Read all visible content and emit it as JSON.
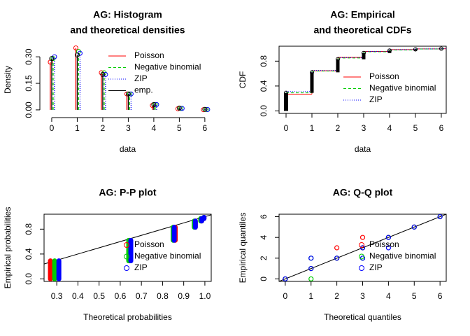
{
  "chart_data": [
    {
      "type": "density",
      "title": [
        "AG: Histogram",
        "and theoretical densities"
      ],
      "xlabel": "data",
      "ylabel": "Density",
      "x": [
        0,
        1,
        2,
        3,
        4,
        5,
        6
      ],
      "xlim": [
        -0.3,
        6.25
      ],
      "ylim": [
        -0.02,
        0.36
      ],
      "xticks": [
        0,
        1,
        2,
        3,
        4,
        5,
        6
      ],
      "yticks": [
        {
          "value": 0,
          "label": "0.00"
        },
        0.15,
        {
          "value": 0.3,
          "label": "0.30"
        }
      ],
      "box": false,
      "legend_position": "topright",
      "legend_symbol": "line",
      "series": [
        {
          "name": "Poisson",
          "color": "#ff0000",
          "line_style": "solid",
          "values": [
            0.27,
            0.35,
            0.21,
            0.09,
            0.025,
            0.006,
            0.001
          ]
        },
        {
          "name": "Negative binomial",
          "color": "#00cd00",
          "line_style": "dashed",
          "values": [
            0.29,
            0.33,
            0.21,
            0.09,
            0.03,
            0.008,
            0.002
          ]
        },
        {
          "name": "ZIP",
          "color": "#0000ff",
          "line_style": "dotted",
          "values": [
            0.3,
            0.32,
            0.2,
            0.09,
            0.03,
            0.008,
            0.002
          ]
        },
        {
          "name": "emp.",
          "color": "#000000",
          "line_style": "solid",
          "values": [
            0.29,
            0.31,
            0.2,
            0.09,
            0.03,
            0.01,
            0.003
          ]
        }
      ]
    },
    {
      "type": "cdf",
      "title": [
        "AG: Empirical",
        "and theoretical CDFs"
      ],
      "xlabel": "data",
      "ylabel": "CDF",
      "x": [
        0,
        1,
        2,
        3,
        4,
        5,
        6
      ],
      "xlim": [
        -0.27,
        6.19
      ],
      "ylim": [
        -0.04,
        1.04
      ],
      "xticks": [
        0,
        1,
        2,
        3,
        4,
        5,
        6
      ],
      "yticks": [
        {
          "value": 0,
          "label": "0.0"
        },
        0.4,
        0.8
      ],
      "box": true,
      "legend_position": "right",
      "legend_symbol": "line",
      "empirical": [
        0.29,
        0.62,
        0.83,
        0.93,
        0.97,
        0.99,
        1.0
      ],
      "series": [
        {
          "name": "Poisson",
          "color": "#ff0000",
          "line_style": "solid",
          "values": [
            0.27,
            0.645,
            0.86,
            0.955,
            0.985,
            0.996,
            0.999
          ]
        },
        {
          "name": "Negative binomial",
          "color": "#00cd00",
          "line_style": "dashed",
          "values": [
            0.29,
            0.64,
            0.85,
            0.95,
            0.98,
            0.995,
            0.999
          ]
        },
        {
          "name": "ZIP",
          "color": "#0000ff",
          "line_style": "dotted",
          "values": [
            0.31,
            0.65,
            0.855,
            0.955,
            0.985,
            0.996,
            0.999
          ]
        }
      ]
    },
    {
      "type": "pp",
      "title": [
        "AG: P-P plot"
      ],
      "xlabel": "Theoretical probabilities",
      "ylabel": "Empirical probabilities",
      "xlim": [
        0.24,
        1.03
      ],
      "ylim": [
        -0.04,
        1.04
      ],
      "xticks": [
        0.3,
        0.4,
        0.5,
        0.6,
        0.7,
        0.8,
        0.9,
        {
          "value": 1,
          "label": "1.0"
        }
      ],
      "yticks": [
        {
          "value": 0,
          "label": "0.0"
        },
        0.4,
        0.8
      ],
      "box": true,
      "legend_position": "bottomright",
      "legend_symbol": "point",
      "series": [
        {
          "name": "Poisson",
          "color": "#ff0000",
          "x": [
            0.27,
            0.645,
            0.86,
            0.955,
            0.985,
            0.996
          ],
          "low": [
            0,
            0.29,
            0.62,
            0.83,
            0.93,
            0.97
          ],
          "high": [
            0.29,
            0.62,
            0.83,
            0.93,
            0.97,
            0.99
          ]
        },
        {
          "name": "Negative binomial",
          "color": "#00cd00",
          "x": [
            0.29,
            0.64,
            0.85,
            0.95,
            0.98,
            0.995
          ],
          "low": [
            0,
            0.29,
            0.62,
            0.83,
            0.93,
            0.97
          ],
          "high": [
            0.29,
            0.62,
            0.83,
            0.93,
            0.97,
            0.99
          ]
        },
        {
          "name": "ZIP",
          "color": "#0000ff",
          "x": [
            0.31,
            0.65,
            0.855,
            0.955,
            0.985,
            0.996
          ],
          "low": [
            0,
            0.29,
            0.62,
            0.83,
            0.93,
            0.97
          ],
          "high": [
            0.29,
            0.62,
            0.83,
            0.93,
            0.97,
            0.99
          ]
        }
      ]
    },
    {
      "type": "qq",
      "title": [
        "AG: Q-Q plot"
      ],
      "xlabel": "Theoretical quantiles",
      "ylabel": "Empirical quantiles",
      "xlim": [
        -0.24,
        6.24
      ],
      "ylim": [
        -0.24,
        6.24
      ],
      "xticks": [
        0,
        1,
        2,
        3,
        4,
        5,
        6
      ],
      "yticks": [
        0,
        2,
        4,
        6
      ],
      "box": true,
      "legend_position": "bottomright",
      "legend_symbol": "point",
      "series": [
        {
          "name": "Poisson",
          "color": "#ff0000",
          "x": [
            0,
            1,
            2,
            2,
            3,
            3,
            4,
            5,
            6
          ],
          "y": [
            0,
            1,
            2,
            3,
            3,
            4,
            4,
            5,
            6
          ]
        },
        {
          "name": "Negative binomial",
          "color": "#00cd00",
          "x": [
            0,
            1,
            1,
            1,
            2,
            3,
            3,
            4,
            5,
            6
          ],
          "y": [
            0,
            0,
            1,
            2,
            2,
            2,
            3,
            4,
            5,
            6
          ]
        },
        {
          "name": "ZIP",
          "color": "#0000ff",
          "x": [
            0,
            1,
            1,
            2,
            3,
            3,
            4,
            4,
            5,
            6
          ],
          "y": [
            0,
            1,
            2,
            2,
            2,
            3,
            3,
            4,
            5,
            6
          ]
        }
      ]
    }
  ]
}
